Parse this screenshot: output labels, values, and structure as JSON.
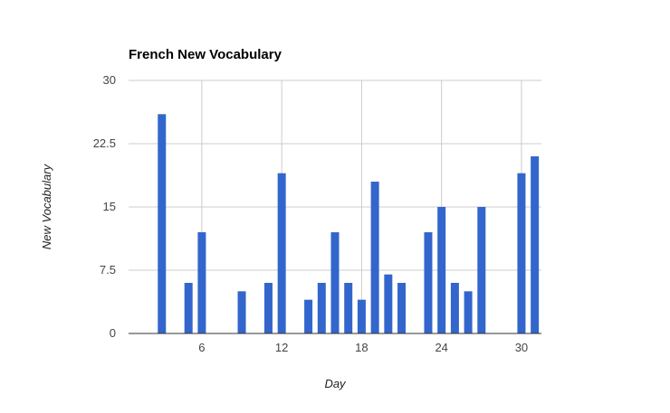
{
  "chart_data": {
    "type": "bar",
    "title": "French New Vocabulary",
    "xlabel": "Day",
    "ylabel": "New Vocabulary",
    "xlim": [
      1,
      31
    ],
    "ylim": [
      0,
      30
    ],
    "x_ticks": [
      6,
      12,
      18,
      24,
      30
    ],
    "y_ticks": [
      0,
      7.5,
      15,
      22.5,
      30
    ],
    "y_tick_labels": [
      "0",
      "7.5",
      "15",
      "22.5",
      "30"
    ],
    "grid": true,
    "legend": "none",
    "bar_color": "#3366cc",
    "x": [
      3,
      5,
      6,
      9,
      11,
      12,
      14,
      15,
      16,
      17,
      18,
      19,
      20,
      21,
      23,
      24,
      25,
      26,
      27,
      30,
      31
    ],
    "values": [
      26,
      6,
      12,
      5,
      6,
      19,
      4,
      6,
      12,
      6,
      4,
      18,
      7,
      6,
      12,
      15,
      6,
      5,
      15,
      19,
      21
    ]
  }
}
